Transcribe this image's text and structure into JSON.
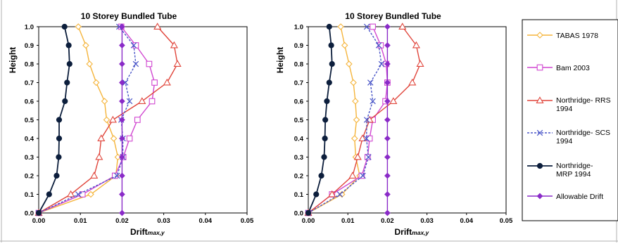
{
  "chart_data": [
    {
      "type": "line",
      "title": "10  Storey Bundled Tube",
      "xlabel": "Drift",
      "xlabel_sub": "max,y",
      "ylabel": "Height",
      "xlim": [
        0,
        0.05
      ],
      "ylim": [
        0,
        1.0
      ],
      "x_ticks": [
        "0.00",
        "0.01",
        "0.02",
        "0.03",
        "0.04",
        "0.05"
      ],
      "y_ticks": [
        "0.0",
        "0.1",
        "0.2",
        "0.3",
        "0.4",
        "0.5",
        "0.6",
        "0.7",
        "0.8",
        "0.9",
        "1.0"
      ],
      "grid": false,
      "series": [
        {
          "name": "TABAS 1978",
          "color": "#f5b43a",
          "marker": "diamond-open",
          "dash": false,
          "x": [
            0,
            0.0125,
            0.0185,
            0.019,
            0.018,
            0.0163,
            0.0158,
            0.0138,
            0.0122,
            0.0113,
            0.0095
          ],
          "y": [
            0,
            0.1,
            0.2,
            0.3,
            0.4,
            0.5,
            0.6,
            0.7,
            0.8,
            0.9,
            1.0
          ]
        },
        {
          "name": "Bam 2003",
          "color": "#d046d0",
          "marker": "square-open",
          "dash": false,
          "x": [
            0,
            0.0105,
            0.0183,
            0.0203,
            0.0218,
            0.0237,
            0.0272,
            0.0278,
            0.0265,
            0.0233,
            0.0198
          ],
          "y": [
            0,
            0.1,
            0.2,
            0.3,
            0.4,
            0.5,
            0.6,
            0.7,
            0.8,
            0.9,
            1.0
          ]
        },
        {
          "name": "Northridge- RRS 1994",
          "color": "#e0443a",
          "marker": "triangle-open",
          "dash": false,
          "x": [
            0,
            0.0077,
            0.0133,
            0.0145,
            0.015,
            0.0178,
            0.0248,
            0.0308,
            0.0333,
            0.0325,
            0.0285
          ],
          "y": [
            0,
            0.1,
            0.2,
            0.3,
            0.4,
            0.5,
            0.6,
            0.7,
            0.8,
            0.9,
            1.0
          ]
        },
        {
          "name": "Northridge- SCS 1994",
          "color": "#4a56c8",
          "marker": "x",
          "dash": true,
          "x": [
            0,
            0.0095,
            0.0188,
            0.0202,
            0.0202,
            0.0198,
            0.0218,
            0.0208,
            0.0233,
            0.0228,
            0.0193
          ],
          "y": [
            0,
            0.1,
            0.2,
            0.3,
            0.4,
            0.5,
            0.6,
            0.7,
            0.8,
            0.9,
            1.0
          ]
        },
        {
          "name": "Northridge- MRP 1994",
          "color": "#0c1e3c",
          "marker": "circle-filled",
          "dash": false,
          "x": [
            0,
            0.0025,
            0.0043,
            0.0048,
            0.0049,
            0.0049,
            0.0063,
            0.0068,
            0.0074,
            0.0072,
            0.0062
          ],
          "y": [
            0,
            0.1,
            0.2,
            0.3,
            0.4,
            0.5,
            0.6,
            0.7,
            0.8,
            0.9,
            1.0
          ]
        },
        {
          "name": "Allowable Drift",
          "color": "#8a2bc8",
          "marker": "diamond-filled",
          "dash": false,
          "x": [
            0.02,
            0.02,
            0.02,
            0.02,
            0.02,
            0.02,
            0.02,
            0.02,
            0.02,
            0.02,
            0.02
          ],
          "y": [
            0,
            0.1,
            0.2,
            0.3,
            0.4,
            0.5,
            0.6,
            0.7,
            0.8,
            0.9,
            1.0
          ]
        }
      ]
    },
    {
      "type": "line",
      "title": "10  Storey Bundled Tube",
      "xlabel": "Drift",
      "xlabel_sub": "max,y",
      "ylabel": "Height",
      "xlim": [
        0,
        0.05
      ],
      "ylim": [
        0,
        1.0
      ],
      "x_ticks": [
        "0.00",
        "0.01",
        "0.02",
        "0.03",
        "0.04",
        "0.05"
      ],
      "y_ticks": [
        "0.0",
        "0.1",
        "0.2",
        "0.3",
        "0.4",
        "0.5",
        "0.6",
        "0.7",
        "0.8",
        "0.9",
        "1.0"
      ],
      "grid": false,
      "legend_position": "right",
      "series": [
        {
          "name": "TABAS 1978",
          "color": "#f5b43a",
          "marker": "diamond-open",
          "dash": false,
          "x": [
            0,
            0.0085,
            0.013,
            0.012,
            0.0117,
            0.0122,
            0.0119,
            0.0114,
            0.0103,
            0.0092,
            0.0082
          ],
          "y": [
            0,
            0.1,
            0.2,
            0.3,
            0.4,
            0.5,
            0.6,
            0.7,
            0.8,
            0.9,
            1.0
          ]
        },
        {
          "name": "Bam 2003",
          "color": "#d046d0",
          "marker": "square-open",
          "dash": false,
          "x": [
            0,
            0.006,
            0.0135,
            0.015,
            0.0155,
            0.0163,
            0.0195,
            0.02,
            0.0197,
            0.0183,
            0.0163
          ],
          "y": [
            0,
            0.1,
            0.2,
            0.3,
            0.4,
            0.5,
            0.6,
            0.7,
            0.8,
            0.9,
            1.0
          ]
        },
        {
          "name": "Northridge- RRS 1994",
          "color": "#e0443a",
          "marker": "triangle-open",
          "dash": false,
          "x": [
            0,
            0.006,
            0.0112,
            0.0125,
            0.0137,
            0.0155,
            0.0215,
            0.0263,
            0.0283,
            0.0273,
            0.0238
          ],
          "y": [
            0,
            0.1,
            0.2,
            0.3,
            0.4,
            0.5,
            0.6,
            0.7,
            0.8,
            0.9,
            1.0
          ]
        },
        {
          "name": "Northridge- SCS 1994",
          "color": "#4a56c8",
          "marker": "x",
          "dash": true,
          "x": [
            0,
            0.008,
            0.0138,
            0.0152,
            0.0147,
            0.0148,
            0.0163,
            0.0157,
            0.0185,
            0.0178,
            0.0148
          ],
          "y": [
            0,
            0.1,
            0.2,
            0.3,
            0.4,
            0.5,
            0.6,
            0.7,
            0.8,
            0.9,
            1.0
          ]
        },
        {
          "name": "Northridge- MRP 1994",
          "color": "#0c1e3c",
          "marker": "circle-filled",
          "dash": false,
          "x": [
            0,
            0.002,
            0.0033,
            0.004,
            0.0042,
            0.0043,
            0.0047,
            0.0053,
            0.006,
            0.0058,
            0.0053
          ],
          "y": [
            0,
            0.1,
            0.2,
            0.3,
            0.4,
            0.5,
            0.6,
            0.7,
            0.8,
            0.9,
            1.0
          ]
        },
        {
          "name": "Allowable Drift",
          "color": "#8a2bc8",
          "marker": "diamond-filled",
          "dash": false,
          "x": [
            0.02,
            0.02,
            0.02,
            0.02,
            0.02,
            0.02,
            0.02,
            0.02,
            0.02,
            0.02,
            0.02
          ],
          "y": [
            0,
            0.1,
            0.2,
            0.3,
            0.4,
            0.5,
            0.6,
            0.7,
            0.8,
            0.9,
            1.0
          ]
        }
      ]
    }
  ],
  "legend": [
    {
      "label": "TABAS 1978",
      "series": 0
    },
    {
      "label": "Bam 2003",
      "series": 1
    },
    {
      "label": "Northridge- RRS\n1994",
      "series": 2
    },
    {
      "label": "Northridge- SCS\n1994",
      "series": 3
    },
    {
      "label": "Northridge-\nMRP 1994",
      "series": 4
    },
    {
      "label": "Allowable Drift",
      "series": 5
    }
  ]
}
